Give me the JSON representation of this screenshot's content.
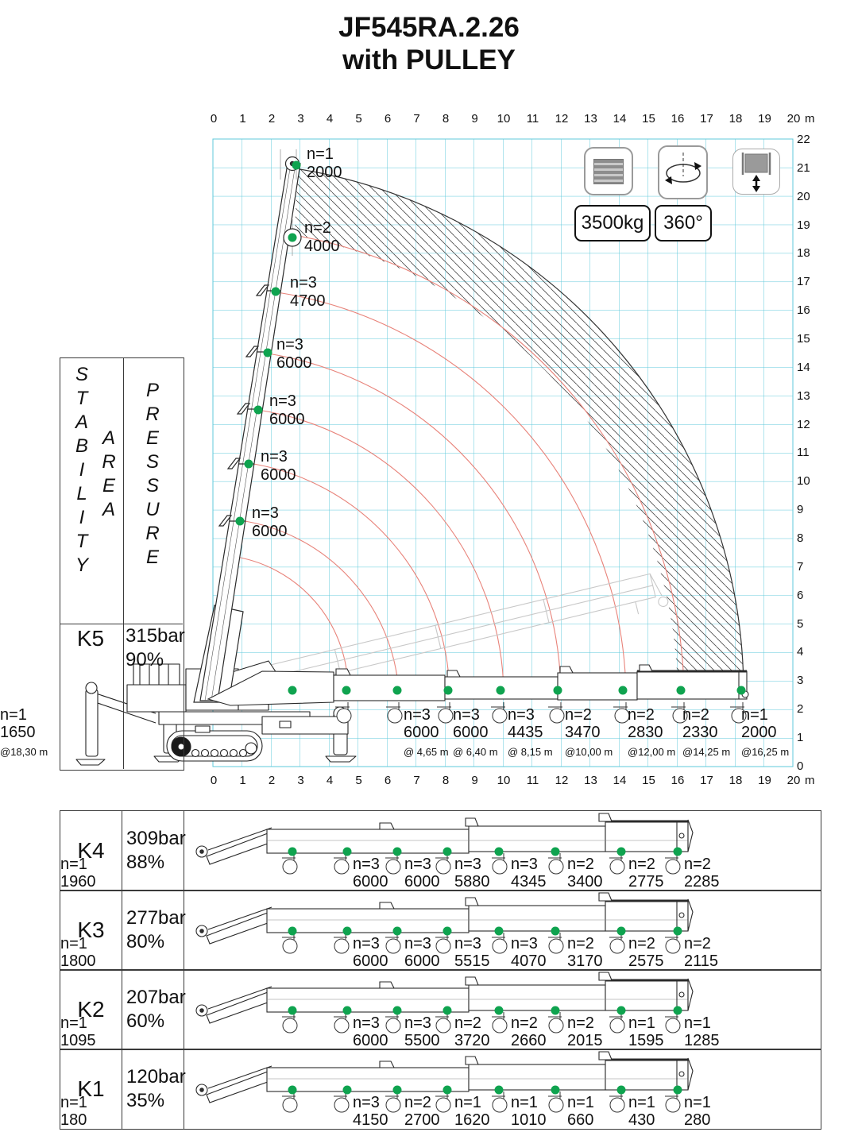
{
  "title": {
    "line1": "JF545RA.2.26",
    "line2": "with PULLEY"
  },
  "badges": {
    "capacity": "3500kg",
    "rotation": "360°"
  },
  "icons": [
    "counterweight-icon",
    "rotation-icon",
    "winch-icon"
  ],
  "colors": {
    "grid": "#5fc9db",
    "curve_red": "#e8837a",
    "dot_green": "#0fa34f"
  },
  "axes": {
    "top_ticks": [
      "0",
      "1",
      "2",
      "3",
      "4",
      "5",
      "6",
      "7",
      "8",
      "9",
      "10",
      "11",
      "12",
      "13",
      "14",
      "15",
      "16",
      "17",
      "18",
      "19",
      "20"
    ],
    "bottom_ticks": [
      "0",
      "1",
      "2",
      "3",
      "4",
      "5",
      "6",
      "7",
      "8",
      "9",
      "10",
      "11",
      "12",
      "13",
      "14",
      "15",
      "16",
      "17",
      "18",
      "19",
      "20"
    ],
    "right_ticks": [
      "22",
      "21",
      "20",
      "19",
      "18",
      "17",
      "16",
      "15",
      "14",
      "13",
      "12",
      "11",
      "10",
      "9",
      "8",
      "7",
      "6",
      "5",
      "4",
      "3",
      "2",
      "1",
      "0"
    ],
    "unit": "m"
  },
  "sidebar": {
    "stability": "STABILITY",
    "area": "AREA",
    "pressure": "PRESSURE"
  },
  "k5": {
    "zone": "K5",
    "pressure": "315bar",
    "percent": "90%"
  },
  "boom_points": [
    {
      "n": "n=1",
      "load": "2000"
    },
    {
      "n": "n=2",
      "load": "4000"
    },
    {
      "n": "n=3",
      "load": "4700"
    },
    {
      "n": "n=3",
      "load": "6000"
    },
    {
      "n": "n=3",
      "load": "6000"
    },
    {
      "n": "n=3",
      "load": "6000"
    },
    {
      "n": "n=3",
      "load": "6000"
    }
  ],
  "k5_loads": [
    {
      "n": "n=3",
      "load": "6000",
      "at": "@ 4,65 m"
    },
    {
      "n": "n=3",
      "load": "6000",
      "at": "@ 6,40 m"
    },
    {
      "n": "n=3",
      "load": "4435",
      "at": "@ 8,15 m"
    },
    {
      "n": "n=2",
      "load": "3470",
      "at": "@10,00 m"
    },
    {
      "n": "n=2",
      "load": "2830",
      "at": "@12,00 m"
    },
    {
      "n": "n=2",
      "load": "2330",
      "at": "@14,25 m"
    },
    {
      "n": "n=1",
      "load": "2000",
      "at": "@16,25 m"
    },
    {
      "n": "n=1",
      "load": "1650",
      "at": "@18,30 m"
    }
  ],
  "rows": [
    {
      "zone": "K4",
      "pressure": "309bar",
      "percent": "88%",
      "loads": [
        {
          "n": "n=3",
          "load": "6000"
        },
        {
          "n": "n=3",
          "load": "6000"
        },
        {
          "n": "n=3",
          "load": "5880"
        },
        {
          "n": "n=3",
          "load": "4345"
        },
        {
          "n": "n=2",
          "load": "3400"
        },
        {
          "n": "n=2",
          "load": "2775"
        },
        {
          "n": "n=2",
          "load": "2285"
        },
        {
          "n": "n=1",
          "load": "1960"
        }
      ]
    },
    {
      "zone": "K3",
      "pressure": "277bar",
      "percent": "80%",
      "loads": [
        {
          "n": "n=3",
          "load": "6000"
        },
        {
          "n": "n=3",
          "load": "6000"
        },
        {
          "n": "n=3",
          "load": "5515"
        },
        {
          "n": "n=3",
          "load": "4070"
        },
        {
          "n": "n=2",
          "load": "3170"
        },
        {
          "n": "n=2",
          "load": "2575"
        },
        {
          "n": "n=2",
          "load": "2115"
        },
        {
          "n": "n=1",
          "load": "1800"
        }
      ]
    },
    {
      "zone": "K2",
      "pressure": "207bar",
      "percent": "60%",
      "loads": [
        {
          "n": "n=3",
          "load": "6000"
        },
        {
          "n": "n=3",
          "load": "5500"
        },
        {
          "n": "n=2",
          "load": "3720"
        },
        {
          "n": "n=2",
          "load": "2660"
        },
        {
          "n": "n=2",
          "load": "2015"
        },
        {
          "n": "n=1",
          "load": "1595"
        },
        {
          "n": "n=1",
          "load": "1285"
        },
        {
          "n": "n=1",
          "load": "1095"
        }
      ]
    },
    {
      "zone": "K1",
      "pressure": "120bar",
      "percent": "35%",
      "loads": [
        {
          "n": "n=3",
          "load": "4150"
        },
        {
          "n": "n=2",
          "load": "2700"
        },
        {
          "n": "n=1",
          "load": "1620"
        },
        {
          "n": "n=1",
          "load": "1010"
        },
        {
          "n": "n=1",
          "load": "660"
        },
        {
          "n": "n=1",
          "load": "430"
        },
        {
          "n": "n=1",
          "load": "280"
        },
        {
          "n": "n=1",
          "load": "180"
        }
      ]
    }
  ],
  "chart_data": {
    "type": "table",
    "title": "JF545RA.2.26 with PULLEY load chart",
    "x_axis_range_m": [
      0,
      20
    ],
    "y_axis_range_m": [
      0,
      22
    ],
    "grid": true,
    "max_hook_load_kg": 3500,
    "slewing_deg": 360,
    "outreach_m": [
      4.65,
      6.4,
      8.15,
      10.0,
      12.0,
      14.25,
      16.25,
      18.3
    ],
    "series": [
      {
        "name": "K5 315bar 90%",
        "falls": [
          3,
          3,
          3,
          2,
          2,
          2,
          1,
          1
        ],
        "values_kg": [
          6000,
          6000,
          4435,
          3470,
          2830,
          2330,
          2000,
          1650
        ]
      },
      {
        "name": "K4 309bar 88%",
        "falls": [
          3,
          3,
          3,
          3,
          2,
          2,
          2,
          1
        ],
        "values_kg": [
          6000,
          6000,
          5880,
          4345,
          3400,
          2775,
          2285,
          1960
        ]
      },
      {
        "name": "K3 277bar 80%",
        "falls": [
          3,
          3,
          3,
          3,
          2,
          2,
          2,
          1
        ],
        "values_kg": [
          6000,
          6000,
          5515,
          4070,
          3170,
          2575,
          2115,
          1800
        ]
      },
      {
        "name": "K2 207bar 60%",
        "falls": [
          3,
          3,
          2,
          2,
          2,
          1,
          1,
          1
        ],
        "values_kg": [
          6000,
          5500,
          3720,
          2660,
          2015,
          1595,
          1285,
          1095
        ]
      },
      {
        "name": "K1 120bar 35%",
        "falls": [
          3,
          2,
          1,
          1,
          1,
          1,
          1,
          1
        ],
        "values_kg": [
          4150,
          2700,
          1620,
          1010,
          660,
          430,
          280,
          180
        ]
      }
    ],
    "boom_vertical_points_kg": [
      {
        "falls": 1,
        "value_kg": 2000
      },
      {
        "falls": 2,
        "value_kg": 4000
      },
      {
        "falls": 3,
        "value_kg": 4700
      },
      {
        "falls": 3,
        "value_kg": 6000
      },
      {
        "falls": 3,
        "value_kg": 6000
      },
      {
        "falls": 3,
        "value_kg": 6000
      },
      {
        "falls": 3,
        "value_kg": 6000
      }
    ]
  }
}
